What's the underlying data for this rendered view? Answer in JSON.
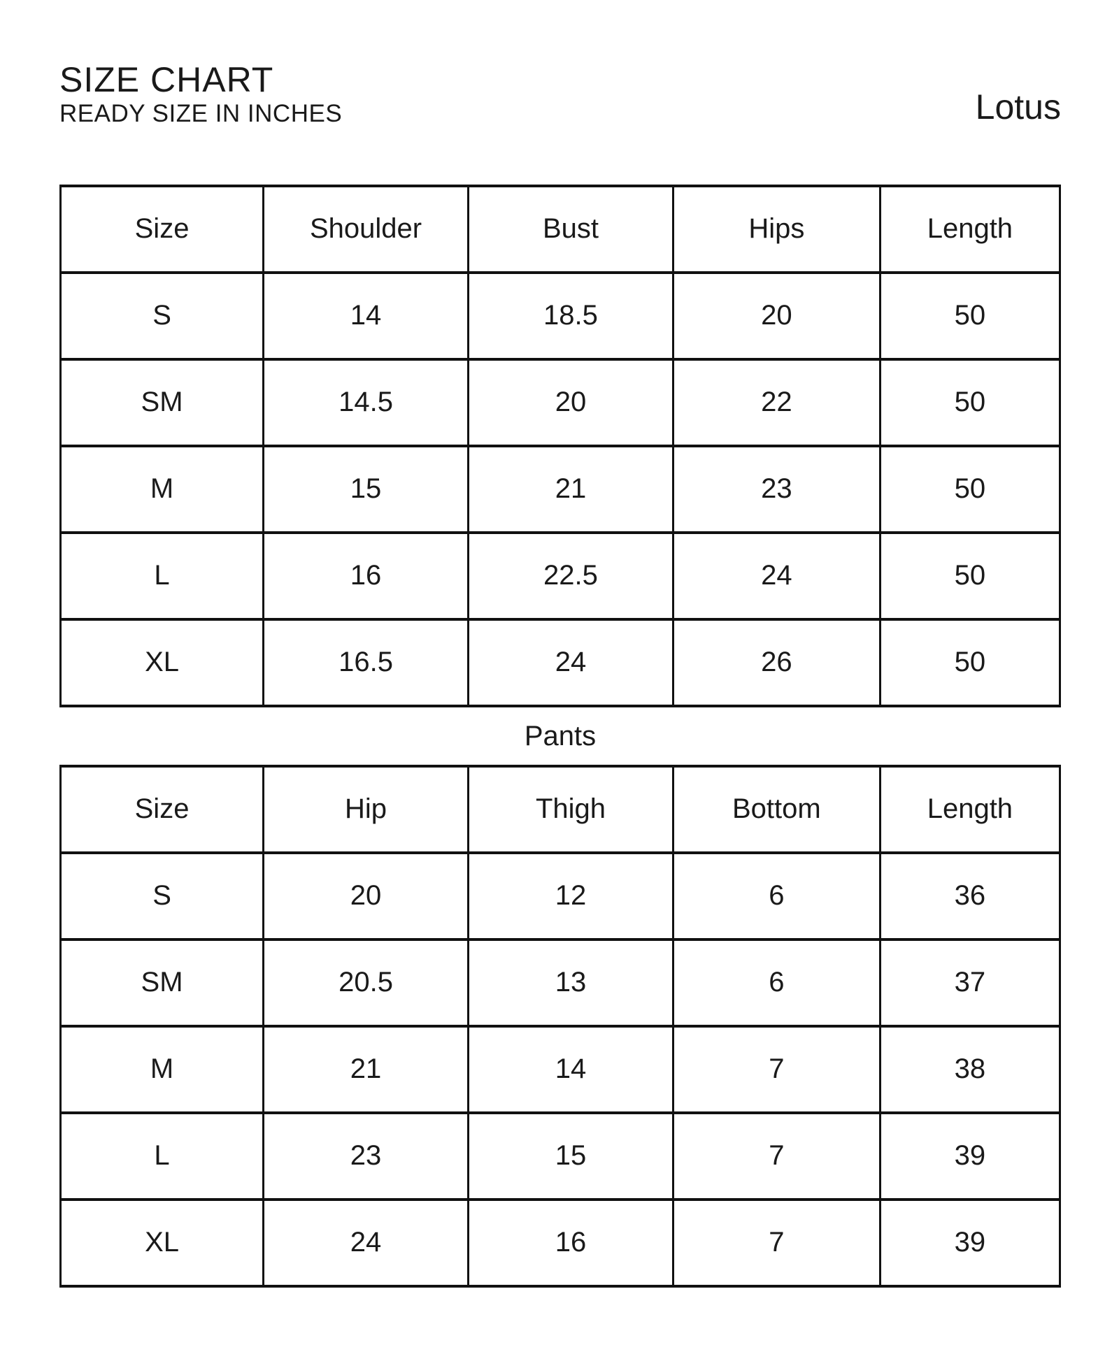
{
  "page": {
    "title": "SIZE CHART",
    "subtitle": "READY SIZE IN INCHES",
    "brand": "Lotus"
  },
  "tops_table": {
    "columns": [
      "Size",
      "Shoulder",
      "Bust",
      "Hips",
      "Length"
    ],
    "rows": [
      [
        "S",
        "14",
        "18.5",
        "20",
        "50"
      ],
      [
        "SM",
        "14.5",
        "20",
        "22",
        "50"
      ],
      [
        "M",
        "15",
        "21",
        "23",
        "50"
      ],
      [
        "L",
        "16",
        "22.5",
        "24",
        "50"
      ],
      [
        "XL",
        "16.5",
        "24",
        "26",
        "50"
      ]
    ]
  },
  "pants_table": {
    "caption": "Pants",
    "columns": [
      "Size",
      "Hip",
      "Thigh",
      "Bottom",
      "Length"
    ],
    "rows": [
      [
        "S",
        "20",
        "12",
        "6",
        "36"
      ],
      [
        "SM",
        "20.5",
        "13",
        "6",
        "37"
      ],
      [
        "M",
        "21",
        "14",
        "7",
        "38"
      ],
      [
        "L",
        "23",
        "15",
        "7",
        "39"
      ],
      [
        "XL",
        "24",
        "16",
        "7",
        "39"
      ]
    ]
  }
}
